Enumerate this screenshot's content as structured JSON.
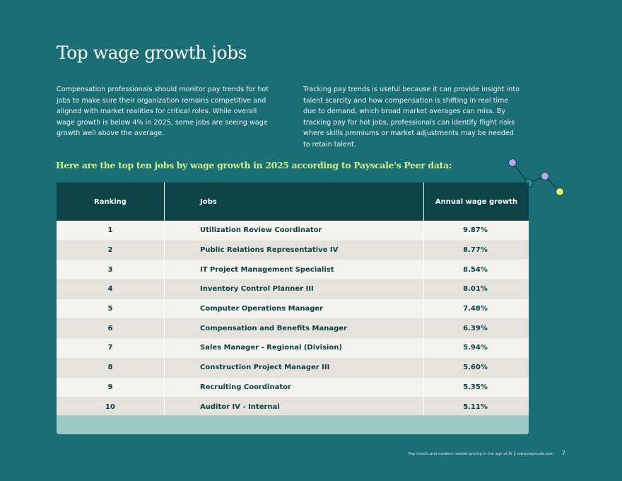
{
  "header": {
    "title": "Top wage growth jobs"
  },
  "paragraphs": [
    "Compensation professionals should monitor pay trends for hot jobs to make sure their organization remains competitive and aligned with market realities for critical roles. While overall wage growth is below 4% in 2025, some jobs are seeing wage growth well above the average.",
    "Tracking pay trends is useful because it can provide insight into talent scarcity and how compensation is shifting in real time due to demand, which broad market averages can miss. By tracking pay for hot jobs, professionals can identify flight risks where skills premiums or market adjustments may be needed to retain talent."
  ],
  "subtitle": "Here are the top ten jobs by wage growth in 2025 according to Payscale's Peer data:",
  "table": {
    "columns": [
      "Ranking",
      "Jobs",
      "Annual wage growth"
    ],
    "rows": [
      [
        "1",
        "Utilization Review Coordinator",
        "9.87%"
      ],
      [
        "2",
        "Public Relations Representative IV",
        "8.77%"
      ],
      [
        "3",
        "IT Project Management Specialist",
        "8.54%"
      ],
      [
        "4",
        "Inventory Control Planner III",
        "8.01%"
      ],
      [
        "5",
        "Computer Operations Manager",
        "7.48%"
      ],
      [
        "6",
        "Compensation and Benefits Manager",
        "6.39%"
      ],
      [
        "7",
        "Sales Manager - Regional (Division)",
        "5.94%"
      ],
      [
        "8",
        "Construction Project Manager III",
        "5.60%"
      ],
      [
        "9",
        "Recruiting Coordinator",
        "5.35%"
      ],
      [
        "10",
        "Auditor IV - Internal",
        "5.11%"
      ]
    ]
  },
  "footer": {
    "text": "Pay trends and modern market pricing in the age of AI",
    "url": "www.payscale.com",
    "page": "7"
  }
}
